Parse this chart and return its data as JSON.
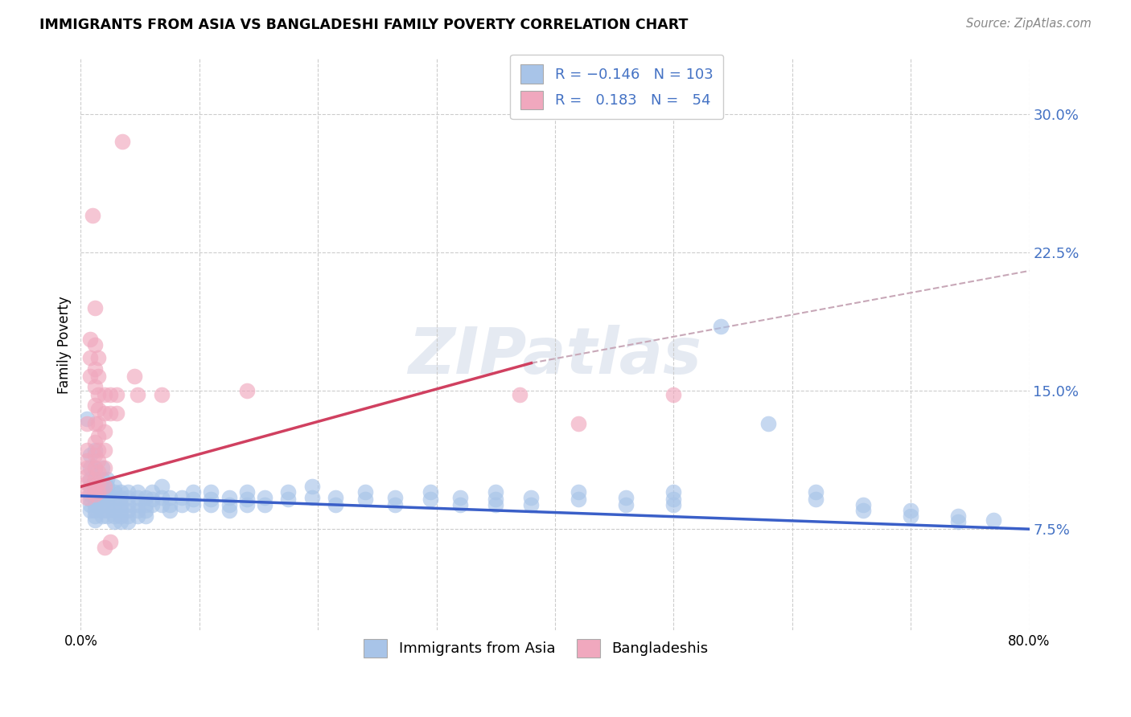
{
  "title": "IMMIGRANTS FROM ASIA VS BANGLADESHI FAMILY POVERTY CORRELATION CHART",
  "source": "Source: ZipAtlas.com",
  "ylabel": "Family Poverty",
  "ytick_labels": [
    "7.5%",
    "15.0%",
    "22.5%",
    "30.0%"
  ],
  "ytick_values": [
    0.075,
    0.15,
    0.225,
    0.3
  ],
  "xlim": [
    0.0,
    0.8
  ],
  "ylim": [
    0.02,
    0.33
  ],
  "legend_labels_bottom": [
    "Immigrants from Asia",
    "Bangladeshis"
  ],
  "asia_color": "#a8c4e8",
  "bangla_color": "#f0a8be",
  "trendline_asia_color": "#3a5fc8",
  "trendline_bangla_color": "#d04060",
  "trendline_dashed_color": "#c8a8b8",
  "watermark": "ZIPatlas",
  "trendline_asia": [
    [
      0.0,
      0.093
    ],
    [
      0.8,
      0.075
    ]
  ],
  "trendline_bangla_solid": [
    [
      0.0,
      0.098
    ],
    [
      0.38,
      0.165
    ]
  ],
  "trendline_bangla_dashed": [
    [
      0.38,
      0.165
    ],
    [
      0.8,
      0.215
    ]
  ],
  "asia_scatter": [
    [
      0.005,
      0.135
    ],
    [
      0.008,
      0.115
    ],
    [
      0.008,
      0.108
    ],
    [
      0.008,
      0.102
    ],
    [
      0.008,
      0.098
    ],
    [
      0.008,
      0.094
    ],
    [
      0.008,
      0.091
    ],
    [
      0.008,
      0.088
    ],
    [
      0.008,
      0.085
    ],
    [
      0.012,
      0.118
    ],
    [
      0.012,
      0.108
    ],
    [
      0.012,
      0.102
    ],
    [
      0.012,
      0.098
    ],
    [
      0.012,
      0.095
    ],
    [
      0.012,
      0.091
    ],
    [
      0.012,
      0.088
    ],
    [
      0.012,
      0.085
    ],
    [
      0.012,
      0.082
    ],
    [
      0.012,
      0.08
    ],
    [
      0.018,
      0.108
    ],
    [
      0.018,
      0.102
    ],
    [
      0.018,
      0.098
    ],
    [
      0.018,
      0.094
    ],
    [
      0.018,
      0.091
    ],
    [
      0.018,
      0.088
    ],
    [
      0.018,
      0.085
    ],
    [
      0.018,
      0.082
    ],
    [
      0.022,
      0.102
    ],
    [
      0.022,
      0.098
    ],
    [
      0.022,
      0.094
    ],
    [
      0.022,
      0.091
    ],
    [
      0.022,
      0.088
    ],
    [
      0.022,
      0.085
    ],
    [
      0.022,
      0.082
    ],
    [
      0.028,
      0.098
    ],
    [
      0.028,
      0.095
    ],
    [
      0.028,
      0.092
    ],
    [
      0.028,
      0.088
    ],
    [
      0.028,
      0.085
    ],
    [
      0.028,
      0.082
    ],
    [
      0.028,
      0.079
    ],
    [
      0.034,
      0.095
    ],
    [
      0.034,
      0.092
    ],
    [
      0.034,
      0.088
    ],
    [
      0.034,
      0.085
    ],
    [
      0.034,
      0.082
    ],
    [
      0.034,
      0.079
    ],
    [
      0.04,
      0.095
    ],
    [
      0.04,
      0.092
    ],
    [
      0.04,
      0.088
    ],
    [
      0.04,
      0.085
    ],
    [
      0.04,
      0.082
    ],
    [
      0.04,
      0.079
    ],
    [
      0.048,
      0.095
    ],
    [
      0.048,
      0.092
    ],
    [
      0.048,
      0.088
    ],
    [
      0.048,
      0.085
    ],
    [
      0.048,
      0.082
    ],
    [
      0.055,
      0.092
    ],
    [
      0.055,
      0.088
    ],
    [
      0.055,
      0.085
    ],
    [
      0.055,
      0.082
    ],
    [
      0.06,
      0.095
    ],
    [
      0.06,
      0.091
    ],
    [
      0.06,
      0.088
    ],
    [
      0.068,
      0.098
    ],
    [
      0.068,
      0.092
    ],
    [
      0.068,
      0.088
    ],
    [
      0.075,
      0.092
    ],
    [
      0.075,
      0.088
    ],
    [
      0.075,
      0.085
    ],
    [
      0.085,
      0.092
    ],
    [
      0.085,
      0.088
    ],
    [
      0.095,
      0.095
    ],
    [
      0.095,
      0.091
    ],
    [
      0.095,
      0.088
    ],
    [
      0.11,
      0.095
    ],
    [
      0.11,
      0.091
    ],
    [
      0.11,
      0.088
    ],
    [
      0.125,
      0.092
    ],
    [
      0.125,
      0.088
    ],
    [
      0.125,
      0.085
    ],
    [
      0.14,
      0.095
    ],
    [
      0.14,
      0.091
    ],
    [
      0.14,
      0.088
    ],
    [
      0.155,
      0.092
    ],
    [
      0.155,
      0.088
    ],
    [
      0.175,
      0.095
    ],
    [
      0.175,
      0.091
    ],
    [
      0.195,
      0.098
    ],
    [
      0.195,
      0.092
    ],
    [
      0.215,
      0.092
    ],
    [
      0.215,
      0.088
    ],
    [
      0.24,
      0.095
    ],
    [
      0.24,
      0.091
    ],
    [
      0.265,
      0.092
    ],
    [
      0.265,
      0.088
    ],
    [
      0.295,
      0.095
    ],
    [
      0.295,
      0.091
    ],
    [
      0.32,
      0.092
    ],
    [
      0.32,
      0.088
    ],
    [
      0.35,
      0.095
    ],
    [
      0.35,
      0.091
    ],
    [
      0.35,
      0.088
    ],
    [
      0.38,
      0.092
    ],
    [
      0.38,
      0.088
    ],
    [
      0.42,
      0.095
    ],
    [
      0.42,
      0.091
    ],
    [
      0.46,
      0.092
    ],
    [
      0.46,
      0.088
    ],
    [
      0.5,
      0.095
    ],
    [
      0.5,
      0.091
    ],
    [
      0.5,
      0.088
    ],
    [
      0.54,
      0.185
    ],
    [
      0.58,
      0.132
    ],
    [
      0.62,
      0.095
    ],
    [
      0.62,
      0.091
    ],
    [
      0.66,
      0.088
    ],
    [
      0.66,
      0.085
    ],
    [
      0.7,
      0.085
    ],
    [
      0.7,
      0.082
    ],
    [
      0.74,
      0.082
    ],
    [
      0.74,
      0.079
    ],
    [
      0.77,
      0.08
    ]
  ],
  "bangla_scatter": [
    [
      0.005,
      0.132
    ],
    [
      0.005,
      0.118
    ],
    [
      0.005,
      0.112
    ],
    [
      0.005,
      0.108
    ],
    [
      0.005,
      0.104
    ],
    [
      0.005,
      0.1
    ],
    [
      0.005,
      0.096
    ],
    [
      0.005,
      0.092
    ],
    [
      0.008,
      0.178
    ],
    [
      0.008,
      0.168
    ],
    [
      0.008,
      0.158
    ],
    [
      0.01,
      0.245
    ],
    [
      0.012,
      0.195
    ],
    [
      0.012,
      0.175
    ],
    [
      0.012,
      0.162
    ],
    [
      0.012,
      0.152
    ],
    [
      0.012,
      0.142
    ],
    [
      0.012,
      0.132
    ],
    [
      0.012,
      0.122
    ],
    [
      0.012,
      0.115
    ],
    [
      0.012,
      0.108
    ],
    [
      0.012,
      0.102
    ],
    [
      0.012,
      0.098
    ],
    [
      0.012,
      0.094
    ],
    [
      0.015,
      0.168
    ],
    [
      0.015,
      0.158
    ],
    [
      0.015,
      0.148
    ],
    [
      0.015,
      0.14
    ],
    [
      0.015,
      0.132
    ],
    [
      0.015,
      0.125
    ],
    [
      0.015,
      0.118
    ],
    [
      0.015,
      0.112
    ],
    [
      0.015,
      0.106
    ],
    [
      0.015,
      0.1
    ],
    [
      0.015,
      0.095
    ],
    [
      0.02,
      0.148
    ],
    [
      0.02,
      0.138
    ],
    [
      0.02,
      0.128
    ],
    [
      0.02,
      0.118
    ],
    [
      0.02,
      0.108
    ],
    [
      0.02,
      0.098
    ],
    [
      0.02,
      0.065
    ],
    [
      0.025,
      0.148
    ],
    [
      0.025,
      0.138
    ],
    [
      0.025,
      0.068
    ],
    [
      0.03,
      0.148
    ],
    [
      0.03,
      0.138
    ],
    [
      0.035,
      0.285
    ],
    [
      0.045,
      0.158
    ],
    [
      0.048,
      0.148
    ],
    [
      0.068,
      0.148
    ],
    [
      0.14,
      0.15
    ],
    [
      0.37,
      0.148
    ],
    [
      0.42,
      0.132
    ],
    [
      0.5,
      0.148
    ]
  ]
}
